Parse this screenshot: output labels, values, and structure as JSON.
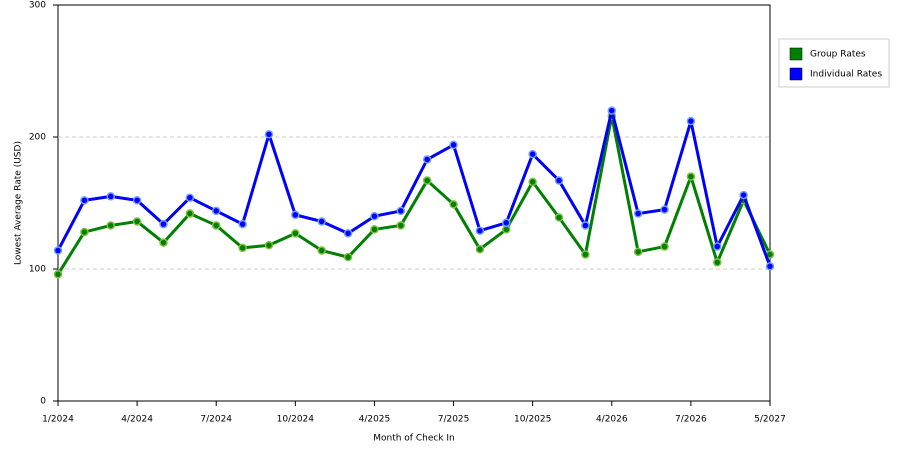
{
  "chart_data": {
    "type": "line",
    "x_label": "Month of Check In",
    "y_label": "Lowest Average Rate (USD)",
    "categories": [
      "1/2024",
      null,
      null,
      "4/2024",
      null,
      null,
      "7/2024",
      null,
      null,
      "10/2024",
      null,
      null,
      "4/2025",
      null,
      null,
      "7/2025",
      null,
      null,
      "10/2025",
      null,
      null,
      "4/2026",
      null,
      null,
      "7/2026",
      null,
      null,
      "5/2027"
    ],
    "series": [
      {
        "name": "Group Rates",
        "color": "#008000",
        "values": [
          96,
          128,
          133,
          136,
          120,
          142,
          133,
          116,
          118,
          127,
          114,
          109,
          130,
          133,
          167,
          149,
          115,
          130,
          166,
          139,
          111,
          216,
          113,
          117,
          170,
          105,
          152,
          111
        ]
      },
      {
        "name": "Individual Rates",
        "color": "#0000ff",
        "values": [
          114,
          152,
          155,
          152,
          134,
          154,
          144,
          134,
          202,
          141,
          136,
          127,
          140,
          144,
          183,
          194,
          129,
          135,
          187,
          167,
          133,
          220,
          142,
          145,
          212,
          117,
          156,
          102
        ]
      }
    ],
    "ylim": [
      0,
      300
    ],
    "yticks": [
      0,
      100,
      200,
      300
    ],
    "grid": true,
    "legend": "upper right"
  }
}
